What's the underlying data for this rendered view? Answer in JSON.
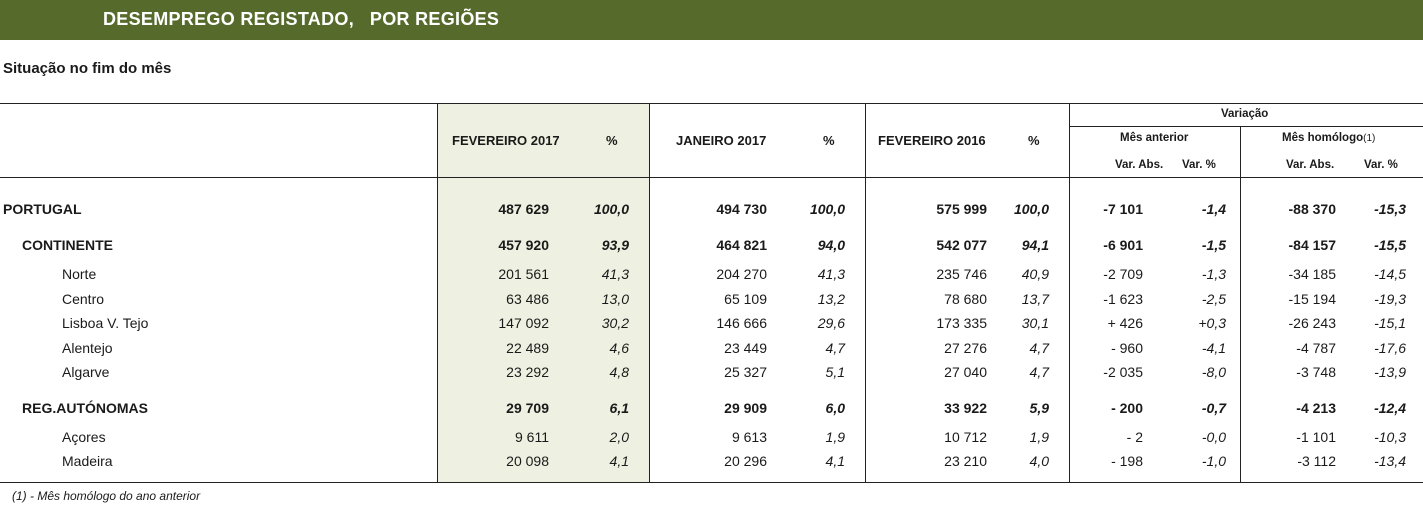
{
  "title": "DESEMPREGO REGISTADO,   POR REGIÕES",
  "subtitle": "Situação no fim do mês",
  "headers": {
    "feb2017": "FEVEREIRO 2017",
    "pct1": "%",
    "jan2017": "JANEIRO 2017",
    "pct2": "%",
    "feb2016": "FEVEREIRO 2016",
    "pct3": "%",
    "variacao": "Variação",
    "mes_anterior": "Mês anterior",
    "mes_homologo": "Mês homólogo",
    "mes_homologo_note": "(1)",
    "var_abs_1": "Var. Abs.",
    "var_pct_1": "Var. %",
    "var_abs_2": "Var. Abs.",
    "var_pct_2": "Var. %"
  },
  "rows": [
    {
      "label": "PORTUGAL",
      "level": 0,
      "bold": true,
      "v": [
        "487 629",
        "100,0",
        "494 730",
        "100,0",
        "575 999",
        "100,0",
        "-7 101",
        "-1,4",
        "-88 370",
        "-15,3"
      ]
    },
    {
      "label": "CONTINENTE",
      "level": 1,
      "bold": true,
      "v": [
        "457 920",
        "93,9",
        "464 821",
        "94,0",
        "542 077",
        "94,1",
        "-6 901",
        "-1,5",
        "-84 157",
        "-15,5"
      ]
    },
    {
      "label": "Norte",
      "level": 2,
      "bold": false,
      "v": [
        "201 561",
        "41,3",
        "204 270",
        "41,3",
        "235 746",
        "40,9",
        "-2 709",
        "-1,3",
        "-34 185",
        "-14,5"
      ]
    },
    {
      "label": "Centro",
      "level": 2,
      "bold": false,
      "v": [
        "63 486",
        "13,0",
        "65 109",
        "13,2",
        "78 680",
        "13,7",
        "-1 623",
        "-2,5",
        "-15 194",
        "-19,3"
      ]
    },
    {
      "label": "Lisboa V. Tejo",
      "level": 2,
      "bold": false,
      "v": [
        "147 092",
        "30,2",
        "146 666",
        "29,6",
        "173 335",
        "30,1",
        "+ 426",
        "+0,3",
        "-26 243",
        "-15,1"
      ]
    },
    {
      "label": "Alentejo",
      "level": 2,
      "bold": false,
      "v": [
        "22 489",
        "4,6",
        "23 449",
        "4,7",
        "27 276",
        "4,7",
        "- 960",
        "-4,1",
        "-4 787",
        "-17,6"
      ]
    },
    {
      "label": "Algarve",
      "level": 2,
      "bold": false,
      "v": [
        "23 292",
        "4,8",
        "25 327",
        "5,1",
        "27 040",
        "4,7",
        "-2 035",
        "-8,0",
        "-3 748",
        "-13,9"
      ]
    },
    {
      "label": "REG.AUTÓNOMAS",
      "level": 1,
      "bold": true,
      "v": [
        "29 709",
        "6,1",
        "29 909",
        "6,0",
        "33 922",
        "5,9",
        "- 200",
        "-0,7",
        "-4 213",
        "-12,4"
      ]
    },
    {
      "label": "Açores",
      "level": 2,
      "bold": false,
      "v": [
        "9 611",
        "2,0",
        "9 613",
        "1,9",
        "10 712",
        "1,9",
        "- 2",
        "-0,0",
        "-1 101",
        "-10,3"
      ]
    },
    {
      "label": "Madeira",
      "level": 2,
      "bold": false,
      "v": [
        "20 098",
        "4,1",
        "20 296",
        "4,1",
        "23 210",
        "4,0",
        "- 198",
        "-1,0",
        "-3 112",
        "-13,4"
      ]
    }
  ],
  "footnote": "(1) - Mês homólogo do ano anterior"
}
